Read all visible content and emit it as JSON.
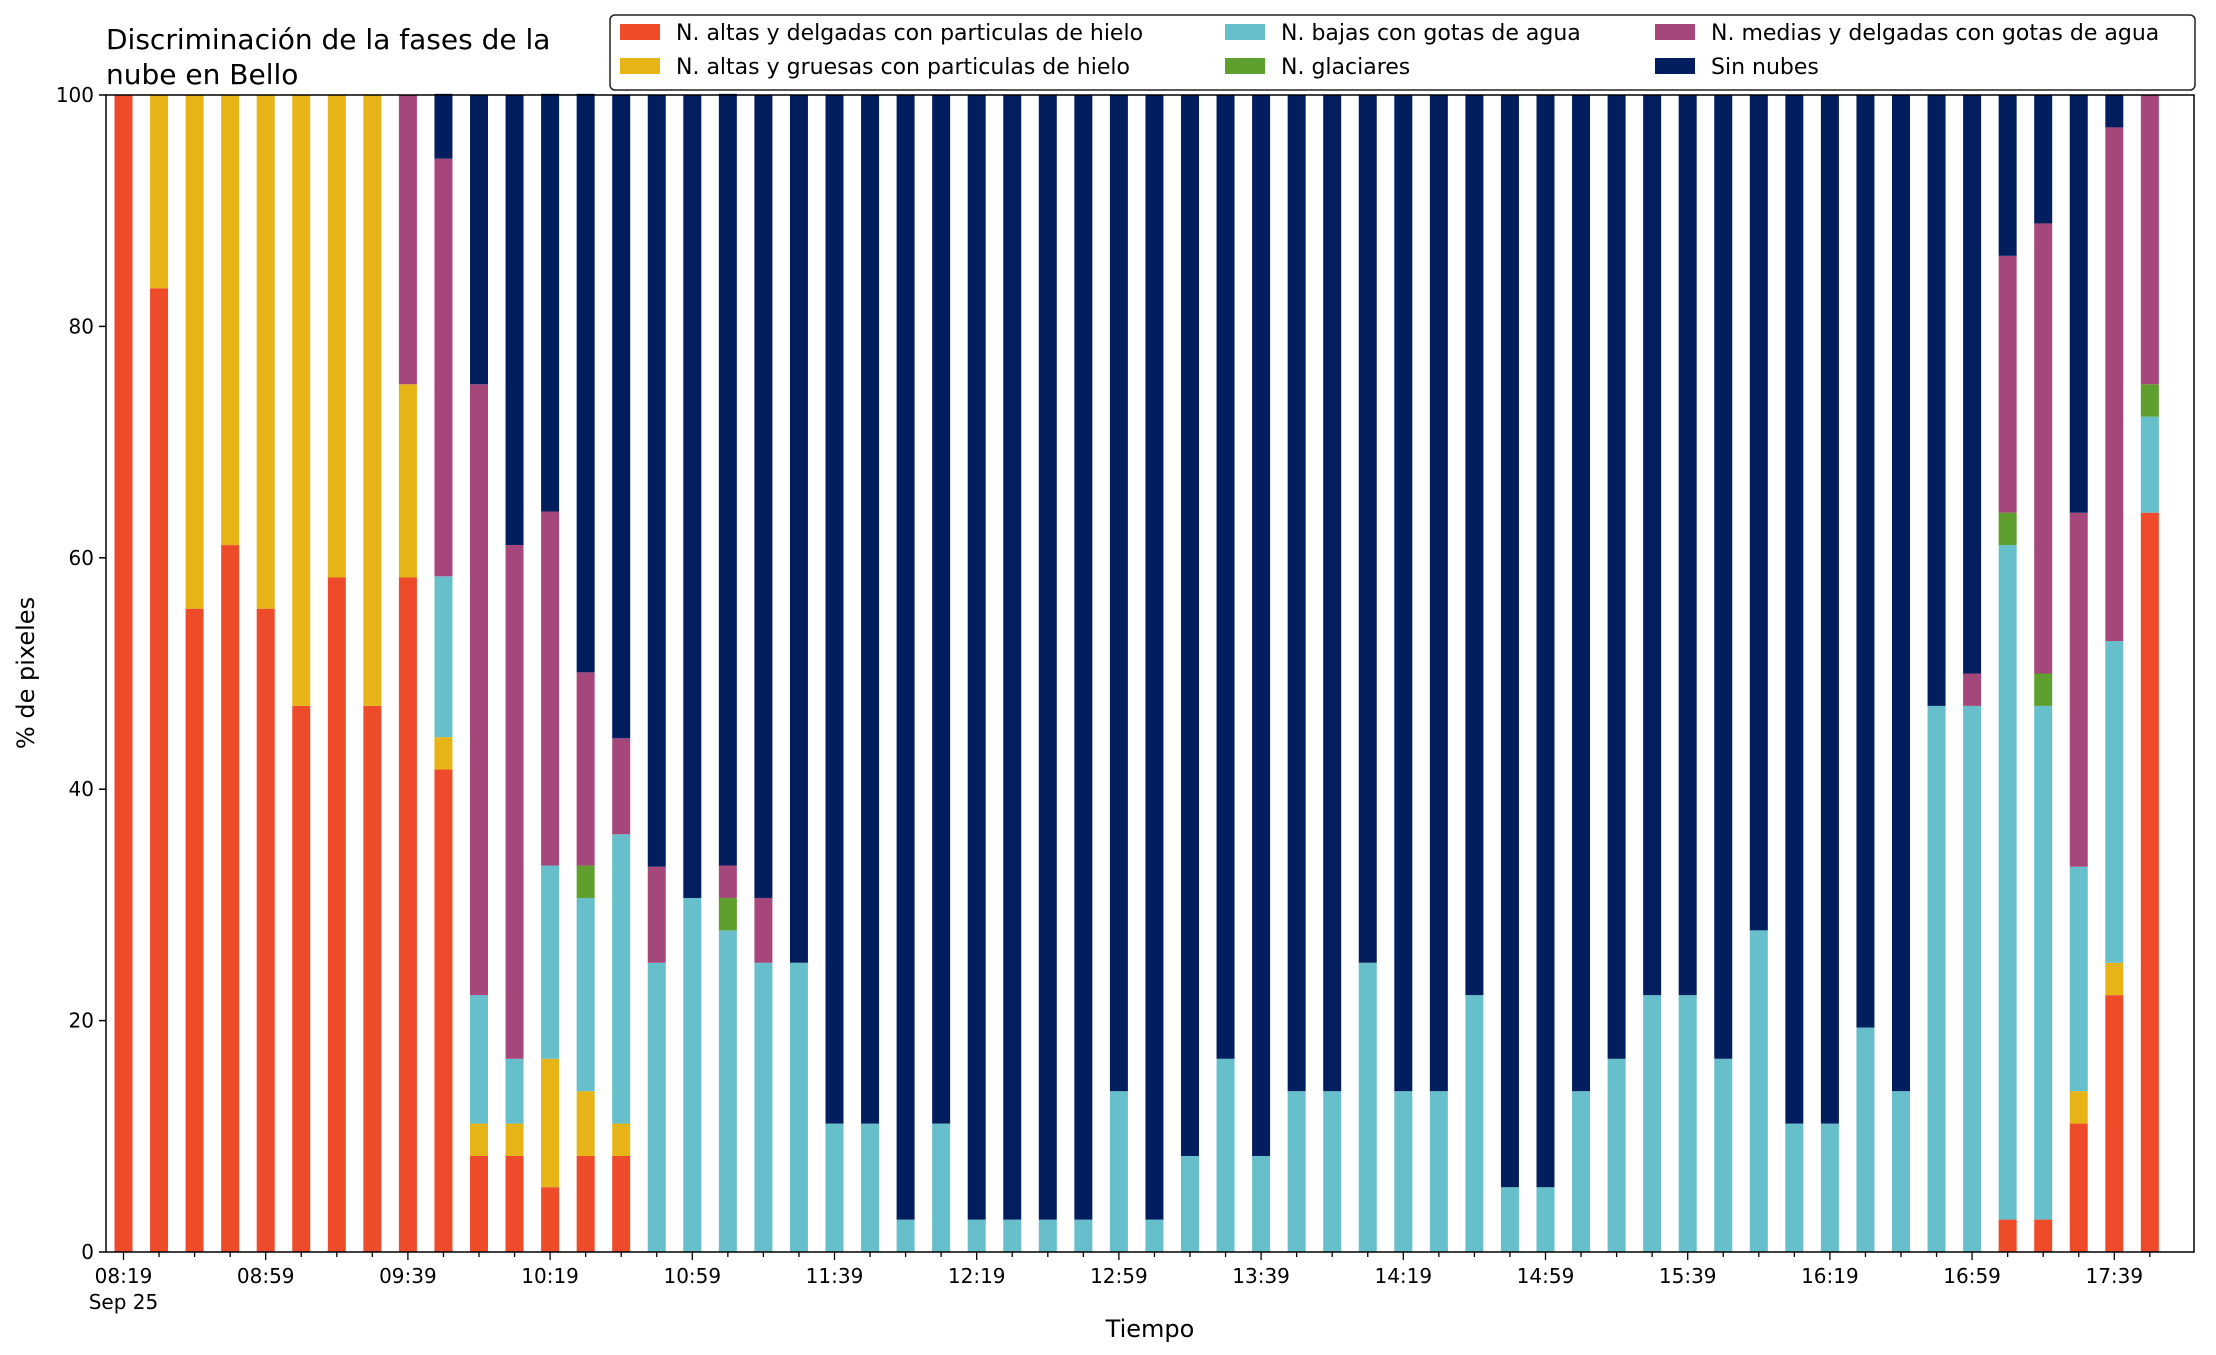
{
  "chart_data": {
    "type": "bar",
    "stacked": true,
    "title_lines": [
      "Discriminación de la fases de la",
      "nube en Bello"
    ],
    "xlabel": "Tiempo",
    "ylabel": "% de pixeles",
    "ylim": [
      0,
      100
    ],
    "y_ticks": [
      0,
      20,
      40,
      60,
      80,
      100
    ],
    "x_tick_labels": [
      "08:19",
      "08:59",
      "09:39",
      "10:19",
      "10:59",
      "11:39",
      "12:19",
      "12:59",
      "13:39",
      "14:19",
      "14:59",
      "15:39",
      "16:19",
      "16:59",
      "17:39"
    ],
    "x_tick_sublabel": "Sep 25",
    "legend_position": "top-right",
    "categories": [
      "08:19",
      "08:29",
      "08:39",
      "08:49",
      "08:59",
      "09:09",
      "09:19",
      "09:29",
      "09:39",
      "09:49",
      "09:59",
      "10:09",
      "10:19",
      "10:29",
      "10:39",
      "10:49",
      "10:59",
      "11:09",
      "11:19",
      "11:29",
      "11:39",
      "11:49",
      "11:59",
      "12:09",
      "12:19",
      "12:29",
      "12:39",
      "12:49",
      "12:59",
      "13:09",
      "13:19",
      "13:29",
      "13:39",
      "13:49",
      "13:59",
      "14:09",
      "14:19",
      "14:29",
      "14:39",
      "14:49",
      "14:59",
      "15:09",
      "15:19",
      "15:29",
      "15:39",
      "15:49",
      "15:59",
      "16:09",
      "16:19",
      "16:29",
      "16:39",
      "16:49",
      "16:59",
      "17:09",
      "17:19",
      "17:29",
      "17:39",
      "17:49"
    ],
    "series": [
      {
        "name": "N. altas y delgadas con particulas de hielo",
        "color": "#ee4b2b",
        "values": [
          100,
          83.3,
          55.6,
          61.1,
          55.6,
          47.2,
          58.3,
          47.2,
          58.3,
          41.7,
          8.3,
          8.3,
          5.6,
          8.3,
          8.3,
          0,
          0,
          0,
          0,
          0,
          0,
          0,
          0,
          0,
          0,
          0,
          0,
          0,
          0,
          0,
          0,
          0,
          0,
          0,
          0,
          0,
          0,
          0,
          0,
          0,
          0,
          0,
          0,
          0,
          0,
          0,
          0,
          0,
          0,
          0,
          0,
          0,
          0,
          2.8,
          2.8,
          11.1,
          22.2,
          63.9
        ]
      },
      {
        "name": "N. altas y gruesas con particulas de hielo",
        "color": "#e6b416",
        "values": [
          0,
          16.7,
          44.4,
          38.9,
          44.4,
          52.8,
          41.7,
          52.8,
          16.7,
          2.8,
          2.8,
          2.8,
          11.1,
          5.6,
          2.8,
          0,
          0,
          0,
          0,
          0,
          0,
          0,
          0,
          0,
          0,
          0,
          0,
          0,
          0,
          0,
          0,
          0,
          0,
          0,
          0,
          0,
          0,
          0,
          0,
          0,
          0,
          0,
          0,
          0,
          0,
          0,
          0,
          0,
          0,
          0,
          0,
          0,
          0,
          0,
          0,
          2.8,
          2.8,
          0
        ]
      },
      {
        "name": "N. bajas con gotas de agua",
        "color": "#66bfcb",
        "values": [
          0,
          0,
          0,
          0,
          0,
          0,
          0,
          0,
          0,
          13.9,
          11.1,
          5.6,
          16.7,
          16.7,
          25,
          25,
          30.6,
          27.8,
          25,
          25,
          11.1,
          11.1,
          2.8,
          11.1,
          2.8,
          2.8,
          2.8,
          2.8,
          13.9,
          2.8,
          8.3,
          16.7,
          8.3,
          13.9,
          13.9,
          25,
          13.9,
          13.9,
          22.2,
          5.6,
          5.6,
          13.9,
          16.7,
          22.2,
          22.2,
          16.7,
          27.8,
          11.1,
          11.1,
          19.4,
          13.9,
          47.2,
          47.2,
          58.3,
          44.4,
          19.4,
          27.8,
          8.3
        ]
      },
      {
        "name": "N. glaciares",
        "color": "#5f9f2d",
        "values": [
          0,
          0,
          0,
          0,
          0,
          0,
          0,
          0,
          0,
          0,
          0,
          0,
          0,
          2.8,
          0,
          0,
          0,
          2.8,
          0,
          0,
          0,
          0,
          0,
          0,
          0,
          0,
          0,
          0,
          0,
          0,
          0,
          0,
          0,
          0,
          0,
          0,
          0,
          0,
          0,
          0,
          0,
          0,
          0,
          0,
          0,
          0,
          0,
          0,
          0,
          0,
          0,
          0,
          0,
          2.8,
          2.8,
          0,
          0,
          2.8
        ]
      },
      {
        "name": "N. medias y delgadas con gotas de agua",
        "color": "#a5477a",
        "values": [
          0,
          0,
          0,
          0,
          0,
          0,
          0,
          0,
          25,
          36.1,
          52.8,
          44.4,
          30.6,
          16.7,
          8.3,
          8.3,
          0,
          2.8,
          5.6,
          0,
          0,
          0,
          0,
          0,
          0,
          0,
          0,
          0,
          0,
          0,
          0,
          0,
          0,
          0,
          0,
          0,
          0,
          0,
          0,
          0,
          0,
          0,
          0,
          0,
          0,
          0,
          0,
          0,
          0,
          0,
          0,
          0,
          2.8,
          22.2,
          38.9,
          30.6,
          44.4,
          25
        ]
      },
      {
        "name": "Sin nubes",
        "color": "#031e5f",
        "values": [
          0,
          0,
          0,
          0,
          0,
          0,
          0,
          0,
          0,
          5.6,
          25,
          38.9,
          36.1,
          50,
          55.6,
          66.7,
          69.4,
          66.7,
          69.4,
          75,
          88.9,
          88.9,
          97.2,
          88.9,
          97.2,
          97.2,
          97.2,
          97.2,
          86.1,
          97.2,
          91.7,
          83.3,
          91.7,
          86.1,
          86.1,
          75,
          86.1,
          86.1,
          77.8,
          94.4,
          94.4,
          86.1,
          83.3,
          77.8,
          77.8,
          83.3,
          72.2,
          88.9,
          88.9,
          80.6,
          86.1,
          52.8,
          50,
          13.9,
          11.1,
          36.1,
          2.8,
          0
        ]
      }
    ]
  }
}
